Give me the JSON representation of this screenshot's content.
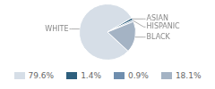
{
  "chart_data": {
    "type": "pie",
    "categories": [
      "WHITE",
      "ASIAN",
      "HISPANIC",
      "BLACK"
    ],
    "values": [
      79.6,
      1.4,
      0.9,
      18.1
    ],
    "value_labels": [
      "79.6%",
      "1.4%",
      "0.9%",
      "18.1%"
    ],
    "colors": [
      "#d6dee7",
      "#2e5f7d",
      "#6f8eae",
      "#a4b3c4"
    ]
  }
}
